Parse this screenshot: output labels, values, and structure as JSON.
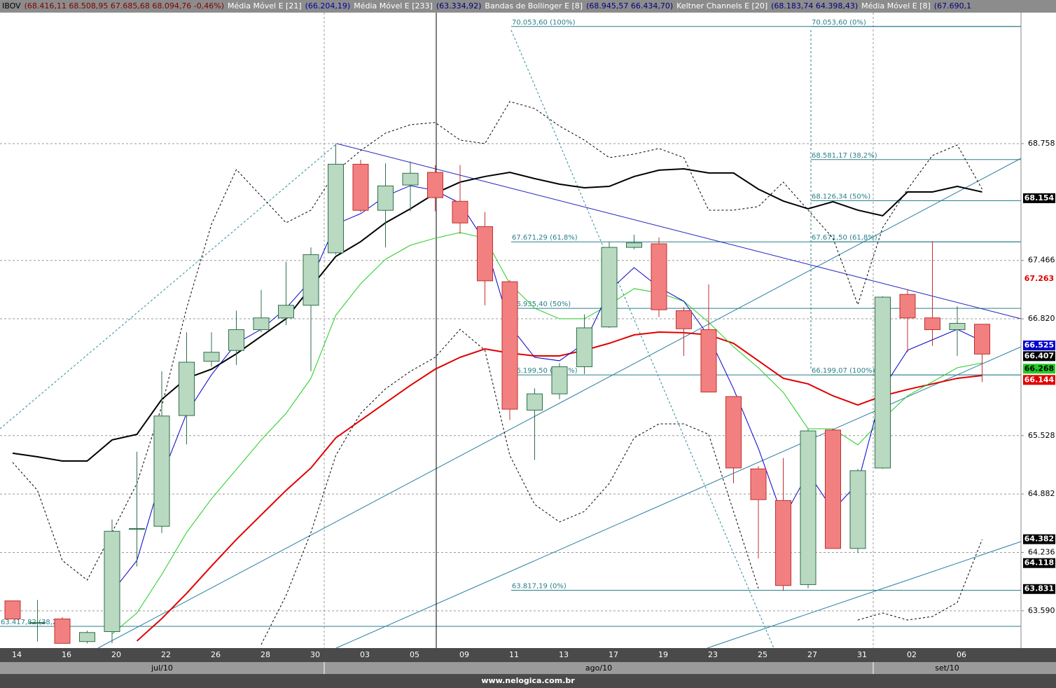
{
  "header": {
    "items": [
      {
        "text": "IBOV",
        "color": "#000000"
      },
      {
        "text": "(68.416,11 68.508,95 67.685,68 68.094,76 -0,46%)",
        "color": "#800000"
      },
      {
        "text": "Média Móvel E [21]",
        "color": "#ffffff"
      },
      {
        "text": "(66.204,19)",
        "color": "#0000aa"
      },
      {
        "text": "Média Móvel E [233]",
        "color": "#ffffff"
      },
      {
        "text": "(63.334,92)",
        "color": "#000080"
      },
      {
        "text": "Bandas de Bollinger E [8]",
        "color": "#ffffff"
      },
      {
        "text": "(68.945,57 66.434,70)",
        "color": "#000080"
      },
      {
        "text": "Keltner Channels E [20]",
        "color": "#ffffff"
      },
      {
        "text": "(68.183,74 64.398,43)",
        "color": "#000080"
      },
      {
        "text": "Média Móvel E [8]",
        "color": "#ffffff"
      },
      {
        "text": "(67.690,1",
        "color": "#000080"
      }
    ]
  },
  "footer": "www.nelogica.com.br",
  "chart_data": {
    "type": "candlestick",
    "categories": [
      "14",
      null,
      "16",
      null,
      "20",
      null,
      "22",
      null,
      "26",
      null,
      "28",
      null,
      "30",
      null,
      "03",
      null,
      "05",
      null,
      "09",
      null,
      "11",
      null,
      "13",
      null,
      "17",
      null,
      "19",
      null,
      "23",
      null,
      "25",
      null,
      "27",
      null,
      "31",
      null,
      "02",
      null,
      "06",
      null
    ],
    "months": [
      "jul/10",
      "ago/10",
      "set/10"
    ],
    "open": [
      63700,
      63460,
      63500,
      63250,
      63360,
      64500,
      64525,
      65750,
      66350,
      66470,
      66700,
      66830,
      66970,
      67550,
      68530,
      68020,
      68300,
      68440,
      68120,
      67840,
      67230,
      65810,
      65990,
      66290,
      66730,
      67610,
      67650,
      66910,
      66700,
      65960,
      65160,
      64810,
      63880,
      65590,
      64280,
      65170,
      67090,
      66830,
      66700,
      66760
    ],
    "high": [
      63700,
      63710,
      63520,
      63370,
      64600,
      65350,
      66240,
      66670,
      66670,
      66910,
      67140,
      67450,
      67610,
      68760,
      68580,
      68540,
      68560,
      68520,
      68520,
      68000,
      67250,
      66050,
      66330,
      66870,
      67670,
      67750,
      67720,
      66950,
      67200,
      65960,
      65190,
      65280,
      65600,
      65600,
      65160,
      67070,
      67150,
      67680,
      66960,
      66760
    ],
    "low": [
      63500,
      63250,
      63230,
      63230,
      63230,
      64080,
      64450,
      65430,
      66290,
      66310,
      66670,
      66750,
      66240,
      67530,
      68000,
      67610,
      68010,
      68010,
      67760,
      66970,
      65700,
      65260,
      65930,
      66210,
      66720,
      67590,
      66840,
      66410,
      66010,
      65000,
      64170,
      63810,
      63840,
      64280,
      64230,
      65160,
      66450,
      66520,
      66410,
      66120
    ],
    "close": [
      63500,
      63460,
      63230,
      63350,
      64470,
      64500,
      65745,
      66340,
      66450,
      66700,
      66830,
      66970,
      67530,
      68530,
      68020,
      68290,
      68430,
      68160,
      67880,
      67240,
      65820,
      65990,
      66290,
      66720,
      67610,
      67660,
      66920,
      66710,
      66010,
      65170,
      64820,
      63870,
      65580,
      64280,
      65140,
      67060,
      66830,
      66700,
      66770,
      66430
    ],
    "up_color": "#b9d9c1",
    "down_color": "#f28080",
    "series": [
      {
        "color": "#000000",
        "dashed": true,
        "values": [
          65232,
          64922,
          64147,
          63930,
          64457,
          64999,
          65852,
          66937,
          67867,
          68471,
          68177,
          67882,
          68022,
          68448,
          68681,
          68874,
          68967,
          68991,
          68797,
          68758,
          69223,
          69146,
          68952,
          68797,
          68603,
          68642,
          68704,
          68603,
          68022,
          68022,
          68061,
          68332,
          68022,
          67712,
          66976,
          67828,
          68254,
          68626,
          68743,
          68254
        ]
      },
      {
        "color": "#000000",
        "dashed": true,
        "values": [
          null,
          null,
          null,
          null,
          null,
          null,
          null,
          null,
          null,
          null,
          63217,
          63759,
          64457,
          65309,
          65774,
          66046,
          66239,
          66394,
          66704,
          66472,
          65309,
          64767,
          64573,
          64689,
          64999,
          65503,
          65658,
          65658,
          65542,
          64689,
          63837,
          null,
          null,
          null,
          63488,
          63566,
          63488,
          63527,
          63682,
          64379
        ]
      },
      {
        "color": "#000000",
        "values": [
          65333,
          65294,
          65247,
          65247,
          65480,
          65542,
          65929,
          66162,
          66263,
          66433,
          66627,
          66821,
          67169,
          67510,
          67673,
          67882,
          68037,
          68208,
          68332,
          68394,
          68440,
          68371,
          68309,
          68270,
          68285,
          68394,
          68464,
          68479,
          68433,
          68433,
          68254,
          68123,
          68037,
          68115,
          68022,
          67960,
          68223,
          68223,
          68285,
          68223
        ]
      },
      {
        "color": "#e00000",
        "values": [
          null,
          null,
          null,
          null,
          null,
          63256,
          63504,
          63783,
          64085,
          64379,
          64651,
          64922,
          65170,
          65503,
          65697,
          65891,
          66084,
          66263,
          66394,
          66487,
          66441,
          66410,
          66410,
          66472,
          66549,
          66642,
          66673,
          66666,
          66642,
          66549,
          66356,
          66162,
          66100,
          65968,
          65867,
          65968,
          66038,
          66100,
          66162,
          66193
        ]
      },
      {
        "color": "#22cc22",
        "values": [
          null,
          null,
          null,
          null,
          63333,
          63566,
          63992,
          64457,
          64829,
          65154,
          65480,
          65774,
          66162,
          66859,
          67208,
          67479,
          67634,
          67712,
          67774,
          67712,
          67208,
          66937,
          66821,
          66821,
          66976,
          67154,
          67107,
          67014,
          66782,
          66511,
          66278,
          66007,
          65604,
          65604,
          65426,
          65712,
          65968,
          66123,
          66278,
          66332
        ]
      },
      {
        "color": "#0000cc",
        "values": [
          null,
          null,
          null,
          null,
          63798,
          64147,
          65077,
          65774,
          66201,
          66549,
          66704,
          66937,
          67247,
          67867,
          67983,
          68177,
          68293,
          68239,
          68099,
          67673,
          66743,
          66394,
          66356,
          66549,
          67131,
          67386,
          67169,
          67014,
          66627,
          66046,
          65387,
          64612,
          65116,
          64705,
          64999,
          66046,
          66472,
          66588,
          66704,
          66573
        ]
      }
    ],
    "fibonacci": [
      {
        "color": "#2a7f8a",
        "levels": [
          {
            "value": 70053.6,
            "label": "70.053,60 (100%)"
          },
          {
            "value": 67671.29,
            "label": "67.671,29 (61,8%)"
          },
          {
            "value": 66935.4,
            "label": "66.935,40 (50%)"
          },
          {
            "value": 66199.5,
            "label": "66.199,50 (38,2%)"
          },
          {
            "value": 63817.19,
            "label": "63.817,19 (0%)"
          }
        ]
      },
      {
        "color": "#2a7f8a",
        "levels": [
          {
            "value": 70053.6,
            "label": "70.053,60 (0%)"
          },
          {
            "value": 68581.17,
            "label": "68.581,17 (38,2%)"
          },
          {
            "value": 68126.34,
            "label": "68.126,34 (50%)"
          },
          {
            "value": 67671.5,
            "label": "67.671,50 (61,8%)"
          },
          {
            "value": 66199.07,
            "label": "66.199,07 (100%)"
          }
        ]
      },
      {
        "color": "#2a7f8a",
        "levels": [
          {
            "value": 63417.82,
            "label": "63.417,82 (38,2%)"
          }
        ]
      }
    ],
    "last_values": [
      {
        "value": 68154,
        "label": "68.154",
        "background": "#000000",
        "text_color": "#ffffff"
      },
      {
        "value": 67263,
        "label": "67.263",
        "background": "#ffffff",
        "text_color": "#e00000"
      },
      {
        "value": 66525,
        "label": "66.525",
        "background": "#0000cc",
        "text_color": "#ffffff"
      },
      {
        "value": 66407,
        "label": "66.407",
        "background": "#000000",
        "text_color": "#ffffff"
      },
      {
        "value": 66268,
        "label": "66.268",
        "background": "#22cc22",
        "text_color": "#000000"
      },
      {
        "value": 66144,
        "label": "66.144",
        "background": "#e00000",
        "text_color": "#ffffff"
      },
      {
        "value": 64382,
        "label": "64.382",
        "background": "#000000",
        "text_color": "#ffffff"
      },
      {
        "value": 64118,
        "label": "64.118",
        "background": "#000000",
        "text_color": "#ffffff"
      },
      {
        "value": 63831,
        "label": "63.831",
        "background": "#000000",
        "text_color": "#ffffff"
      }
    ],
    "ylim": [
      63178,
      70207
    ],
    "yticks": [
      {
        "value": 68758,
        "label": "68.758"
      },
      {
        "value": 67466,
        "label": "67.466"
      },
      {
        "value": 66820,
        "label": "66.820"
      },
      {
        "value": 65528,
        "label": "65.528"
      },
      {
        "value": 64882,
        "label": "64.882"
      },
      {
        "value": 64236,
        "label": "64.236"
      },
      {
        "value": 63590,
        "label": "63.590"
      }
    ],
    "grid": true
  }
}
